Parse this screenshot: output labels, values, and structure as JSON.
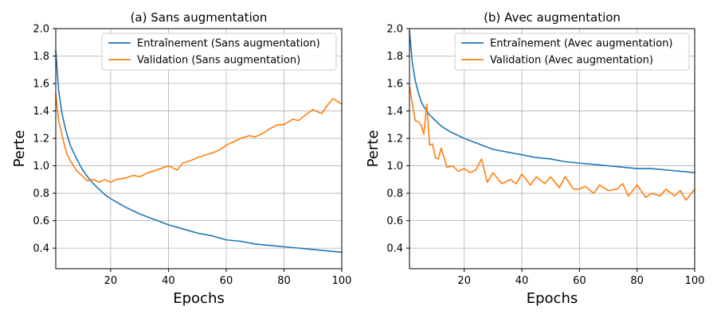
{
  "chart_data": [
    {
      "type": "line",
      "title": "(a) Sans augmentation",
      "xlabel": "Epochs",
      "ylabel": "Perte",
      "xlim": [
        1,
        100
      ],
      "ylim": [
        0.25,
        2.0
      ],
      "xticks": [
        20,
        40,
        60,
        80,
        100
      ],
      "yticks": [
        0.4,
        0.6,
        0.8,
        1.0,
        1.2,
        1.4,
        1.6,
        1.8,
        2.0
      ],
      "grid": true,
      "legend": "top-right",
      "series": [
        {
          "name": "Entraînement (Sans augmentation)",
          "color": "#1f77b4",
          "x": [
            1,
            2,
            3,
            4,
            5,
            6,
            8,
            10,
            12,
            14,
            16,
            18,
            20,
            25,
            30,
            35,
            40,
            45,
            50,
            55,
            60,
            65,
            70,
            75,
            80,
            85,
            90,
            95,
            100
          ],
          "y": [
            1.84,
            1.55,
            1.4,
            1.3,
            1.22,
            1.15,
            1.06,
            0.98,
            0.92,
            0.87,
            0.83,
            0.79,
            0.76,
            0.7,
            0.65,
            0.61,
            0.57,
            0.54,
            0.51,
            0.49,
            0.46,
            0.45,
            0.43,
            0.42,
            0.41,
            0.4,
            0.39,
            0.38,
            0.37
          ]
        },
        {
          "name": "Validation (Sans augmentation)",
          "color": "#ff7f0e",
          "x": [
            1,
            2,
            3,
            4,
            5,
            6,
            8,
            10,
            12,
            14,
            16,
            18,
            20,
            22,
            25,
            28,
            30,
            33,
            36,
            40,
            43,
            45,
            48,
            50,
            53,
            56,
            58,
            60,
            63,
            65,
            68,
            70,
            73,
            75,
            78,
            80,
            83,
            85,
            88,
            90,
            93,
            95,
            97,
            100
          ],
          "y": [
            1.52,
            1.33,
            1.24,
            1.15,
            1.08,
            1.04,
            0.97,
            0.93,
            0.89,
            0.9,
            0.88,
            0.9,
            0.88,
            0.9,
            0.91,
            0.93,
            0.92,
            0.95,
            0.97,
            1.0,
            0.97,
            1.02,
            1.04,
            1.06,
            1.08,
            1.1,
            1.12,
            1.15,
            1.18,
            1.2,
            1.22,
            1.21,
            1.24,
            1.27,
            1.3,
            1.3,
            1.34,
            1.33,
            1.38,
            1.41,
            1.38,
            1.44,
            1.49,
            1.45
          ]
        }
      ]
    },
    {
      "type": "line",
      "title": "(b) Avec augmentation",
      "xlabel": "Epochs",
      "ylabel": "Perte",
      "xlim": [
        1,
        100
      ],
      "ylim": [
        0.25,
        2.0
      ],
      "xticks": [
        20,
        40,
        60,
        80,
        100
      ],
      "yticks": [
        0.4,
        0.6,
        0.8,
        1.0,
        1.2,
        1.4,
        1.6,
        1.8,
        2.0
      ],
      "grid": true,
      "legend": "top-right",
      "series": [
        {
          "name": "Entraînement (Avec augmentation)",
          "color": "#1f77b4",
          "x": [
            1,
            2,
            3,
            4,
            5,
            6,
            8,
            10,
            12,
            15,
            18,
            20,
            25,
            30,
            35,
            40,
            45,
            50,
            55,
            60,
            65,
            70,
            75,
            80,
            85,
            90,
            95,
            100
          ],
          "y": [
            1.98,
            1.75,
            1.62,
            1.54,
            1.47,
            1.43,
            1.37,
            1.33,
            1.29,
            1.25,
            1.22,
            1.2,
            1.16,
            1.12,
            1.1,
            1.08,
            1.06,
            1.05,
            1.03,
            1.02,
            1.01,
            1.0,
            0.99,
            0.98,
            0.98,
            0.97,
            0.96,
            0.95
          ]
        },
        {
          "name": "Validation (Avec augmentation)",
          "color": "#ff7f0e",
          "x": [
            1,
            2,
            3,
            4,
            5,
            6,
            7,
            8,
            9,
            10,
            11,
            12,
            14,
            16,
            18,
            20,
            22,
            24,
            26,
            28,
            30,
            33,
            36,
            38,
            40,
            43,
            45,
            48,
            50,
            53,
            55,
            58,
            60,
            62,
            65,
            67,
            70,
            73,
            75,
            77,
            80,
            83,
            85,
            88,
            90,
            93,
            95,
            97,
            100
          ],
          "y": [
            1.58,
            1.45,
            1.33,
            1.32,
            1.3,
            1.23,
            1.45,
            1.15,
            1.16,
            1.06,
            1.05,
            1.13,
            0.99,
            1.0,
            0.96,
            0.98,
            0.95,
            0.97,
            1.05,
            0.88,
            0.95,
            0.87,
            0.9,
            0.87,
            0.94,
            0.86,
            0.92,
            0.87,
            0.92,
            0.84,
            0.92,
            0.83,
            0.83,
            0.85,
            0.8,
            0.86,
            0.82,
            0.83,
            0.87,
            0.78,
            0.86,
            0.77,
            0.8,
            0.78,
            0.83,
            0.78,
            0.82,
            0.75,
            0.83
          ]
        }
      ]
    }
  ]
}
